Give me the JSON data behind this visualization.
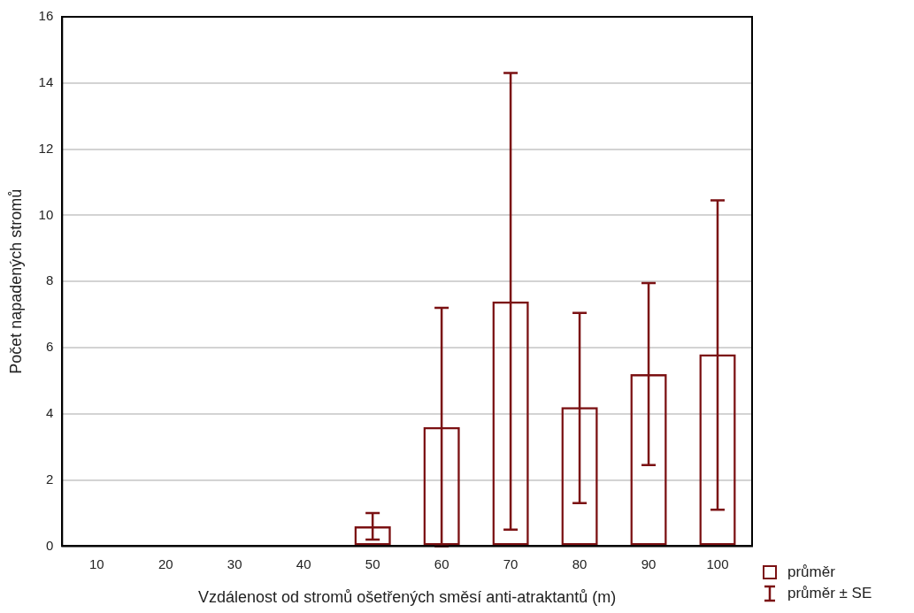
{
  "chart_data": {
    "type": "bar",
    "xlabel": "Vzdálenost od stromů ošetřených směsí anti-atraktantů (m)",
    "ylabel": "Počet napadených stromů",
    "categories": [
      "10",
      "20",
      "30",
      "40",
      "50",
      "60",
      "70",
      "80",
      "90",
      "100"
    ],
    "series": [
      {
        "name": "průměr",
        "color": "#7b1113",
        "values": [
          0,
          0,
          0,
          0,
          0.6,
          3.6,
          7.4,
          4.2,
          5.2,
          5.8
        ],
        "errors": [
          null,
          null,
          null,
          null,
          [
            0.2,
            1.0
          ],
          [
            0,
            7.2
          ],
          [
            0.5,
            14.3
          ],
          [
            1.3,
            7.05
          ],
          [
            2.45,
            7.95
          ],
          [
            1.1,
            10.45
          ]
        ]
      }
    ],
    "ylim": [
      0,
      16
    ],
    "yticks": [
      0,
      2,
      4,
      6,
      8,
      10,
      12,
      14,
      16
    ],
    "grid": "y",
    "legend": "bottom right",
    "annotations": [
      "průměr ± SE"
    ]
  }
}
